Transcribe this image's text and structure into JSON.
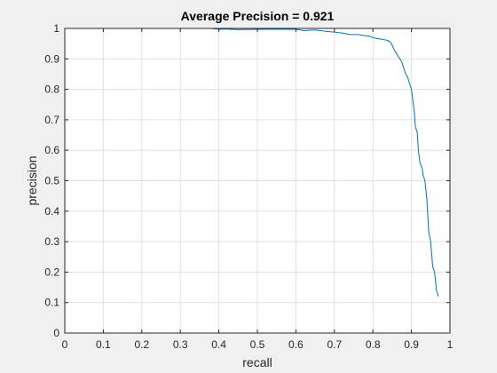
{
  "chart_data": {
    "type": "line",
    "title": "Average Precision = 0.921",
    "xlabel": "recall",
    "ylabel": "precision",
    "xlim": [
      0,
      1
    ],
    "ylim": [
      0,
      1
    ],
    "xticks": [
      "0",
      "0.1",
      "0.2",
      "0.3",
      "0.4",
      "0.5",
      "0.6",
      "0.7",
      "0.8",
      "0.9",
      "1"
    ],
    "yticks": [
      "0",
      "0.1",
      "0.2",
      "0.3",
      "0.4",
      "0.5",
      "0.6",
      "0.7",
      "0.8",
      "0.9",
      "1"
    ],
    "grid": true,
    "colors": {
      "line": "#0072bd",
      "axes_background": "#ffffff",
      "figure_background": "#f0f0f0",
      "grid": "#e0e0e0",
      "axis": "#262626"
    },
    "series": [
      {
        "x": [
          0.0,
          0.05,
          0.1,
          0.2,
          0.3,
          0.38,
          0.4,
          0.42,
          0.45,
          0.5,
          0.55,
          0.6,
          0.62,
          0.65,
          0.68,
          0.7,
          0.72,
          0.74,
          0.76,
          0.78,
          0.79,
          0.8,
          0.81,
          0.82,
          0.83,
          0.84,
          0.845,
          0.85,
          0.855,
          0.86,
          0.865,
          0.87,
          0.875,
          0.88,
          0.885,
          0.89,
          0.895,
          0.9,
          0.902,
          0.905,
          0.908,
          0.91,
          0.912,
          0.915,
          0.918,
          0.92,
          0.922,
          0.925,
          0.928,
          0.93,
          0.935,
          0.94,
          0.945,
          0.95,
          0.955,
          0.96,
          0.965,
          0.97
        ],
        "y": [
          1.0,
          1.0,
          1.0,
          1.0,
          1.0,
          1.0,
          0.997,
          0.998,
          0.996,
          0.997,
          0.997,
          0.997,
          0.993,
          0.995,
          0.99,
          0.988,
          0.985,
          0.98,
          0.98,
          0.976,
          0.975,
          0.97,
          0.967,
          0.965,
          0.963,
          0.96,
          0.955,
          0.945,
          0.93,
          0.92,
          0.91,
          0.9,
          0.89,
          0.87,
          0.85,
          0.84,
          0.82,
          0.8,
          0.78,
          0.75,
          0.72,
          0.68,
          0.67,
          0.66,
          0.6,
          0.58,
          0.56,
          0.55,
          0.54,
          0.52,
          0.5,
          0.44,
          0.33,
          0.3,
          0.22,
          0.2,
          0.14,
          0.12
        ]
      }
    ]
  }
}
